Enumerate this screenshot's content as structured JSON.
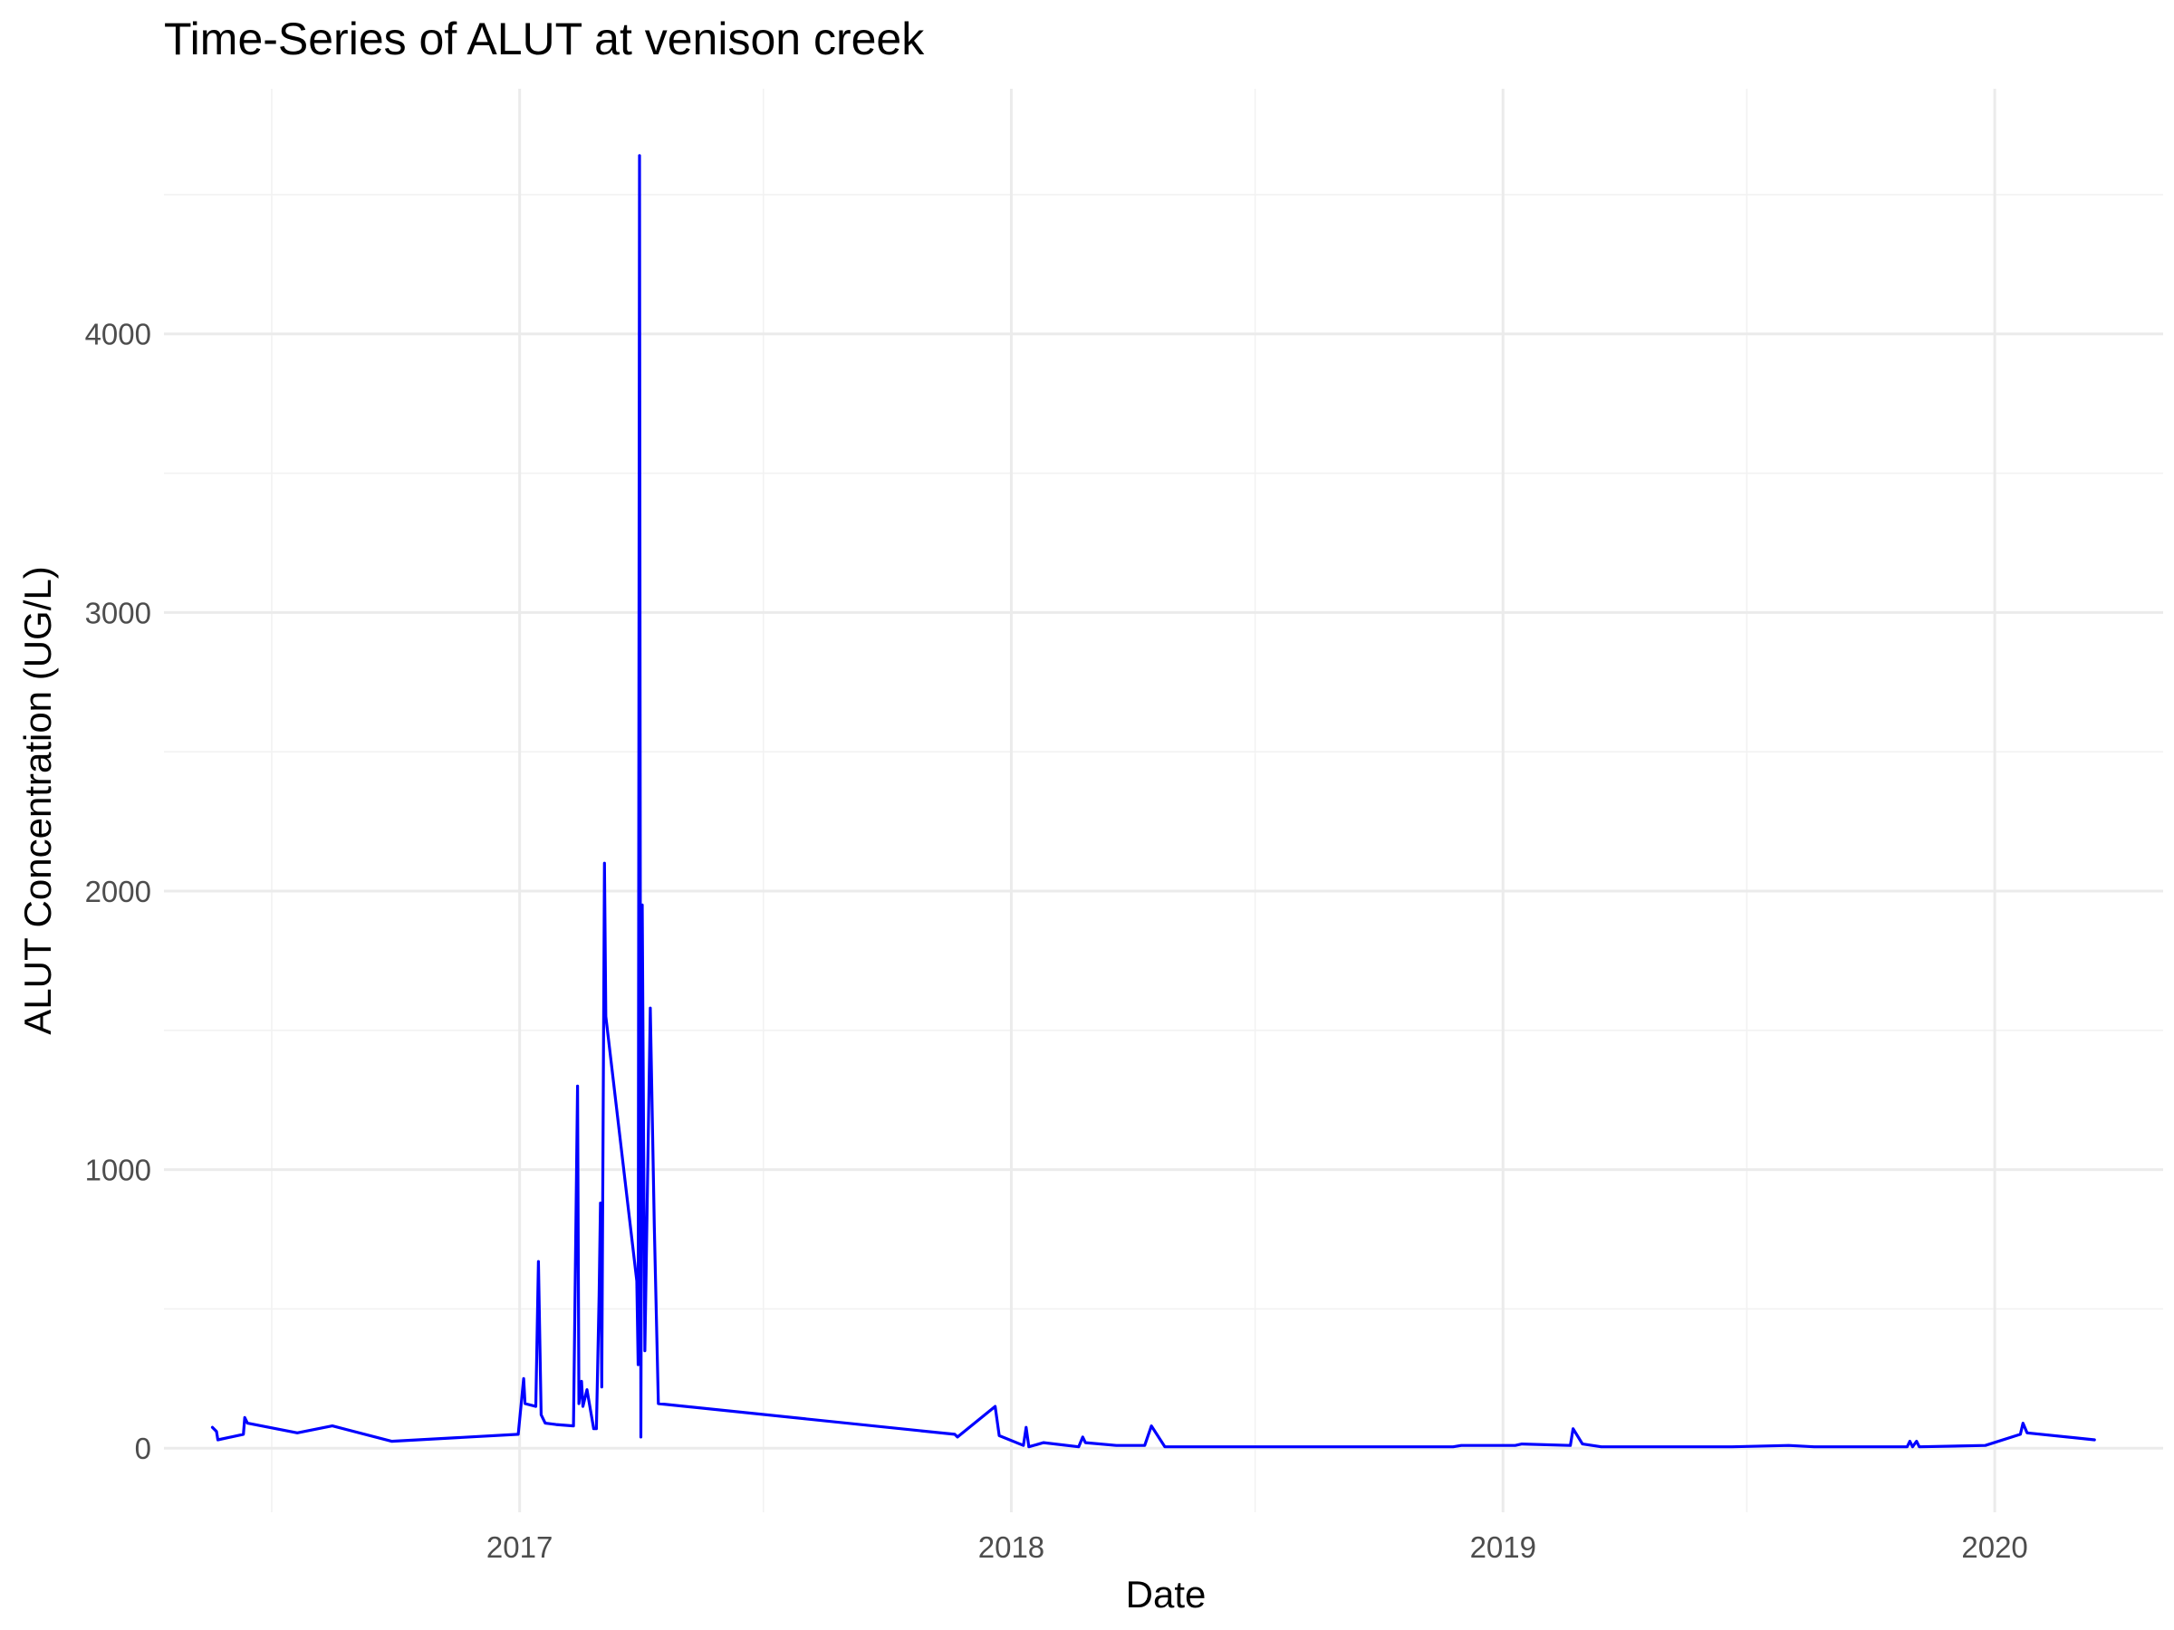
{
  "chart_data": {
    "type": "line",
    "title": "Time-Series of ALUT at venison creek",
    "xlabel": "Date",
    "ylabel": "ALUT Concentration (UG/L)",
    "x_ticks": [
      "2017",
      "2018",
      "2019",
      "2020"
    ],
    "y_ticks": [
      "0",
      "1000",
      "2000",
      "3000",
      "4000"
    ],
    "xlim": [
      "2016-04-12",
      "2020-05-05"
    ],
    "ylim": [
      -230,
      4880
    ],
    "grid": true,
    "legend": "none",
    "series": [
      {
        "color": "#0000ff",
        "points": [
          [
            "2016-05-18",
            75
          ],
          [
            "2016-05-21",
            60
          ],
          [
            "2016-05-22",
            30
          ],
          [
            "2016-06-10",
            50
          ],
          [
            "2016-06-11",
            110
          ],
          [
            "2016-06-13",
            90
          ],
          [
            "2016-07-20",
            55
          ],
          [
            "2016-08-15",
            80
          ],
          [
            "2016-09-28",
            25
          ],
          [
            "2016-11-05",
            35
          ],
          [
            "2016-12-31",
            50
          ],
          [
            "2017-01-04",
            250
          ],
          [
            "2017-01-05",
            160
          ],
          [
            "2017-01-13",
            150
          ],
          [
            "2017-01-15",
            670
          ],
          [
            "2017-01-17",
            120
          ],
          [
            "2017-01-20",
            90
          ],
          [
            "2017-01-28",
            85
          ],
          [
            "2017-02-10",
            80
          ],
          [
            "2017-02-13",
            1300
          ],
          [
            "2017-02-14",
            160
          ],
          [
            "2017-02-16",
            240
          ],
          [
            "2017-02-17",
            150
          ],
          [
            "2017-02-20",
            210
          ],
          [
            "2017-02-25",
            70
          ],
          [
            "2017-02-27",
            70
          ],
          [
            "2017-03-01",
            550
          ],
          [
            "2017-03-02",
            880
          ],
          [
            "2017-03-03",
            220
          ],
          [
            "2017-03-05",
            2100
          ],
          [
            "2017-03-06",
            1550
          ],
          [
            "2017-03-29",
            600
          ],
          [
            "2017-03-30",
            300
          ],
          [
            "2017-03-31",
            4640
          ],
          [
            "2017-04-01",
            40
          ],
          [
            "2017-04-02",
            1950
          ],
          [
            "2017-04-04",
            350
          ],
          [
            "2017-04-08",
            1580
          ],
          [
            "2017-04-11",
            800
          ],
          [
            "2017-04-14",
            160
          ],
          [
            "2017-11-20",
            50
          ],
          [
            "2017-11-22",
            40
          ],
          [
            "2017-12-20",
            150
          ],
          [
            "2017-12-23",
            45
          ],
          [
            "2018-01-10",
            10
          ],
          [
            "2018-01-12",
            75
          ],
          [
            "2018-01-14",
            5
          ],
          [
            "2018-01-25",
            20
          ],
          [
            "2018-02-20",
            5
          ],
          [
            "2018-02-23",
            40
          ],
          [
            "2018-02-25",
            20
          ],
          [
            "2018-03-20",
            10
          ],
          [
            "2018-04-10",
            10
          ],
          [
            "2018-04-15",
            80
          ],
          [
            "2018-04-25",
            5
          ],
          [
            "2018-11-25",
            5
          ],
          [
            "2018-12-01",
            10
          ],
          [
            "2019-01-10",
            10
          ],
          [
            "2019-01-15",
            15
          ],
          [
            "2019-02-20",
            10
          ],
          [
            "2019-02-22",
            70
          ],
          [
            "2019-03-01",
            15
          ],
          [
            "2019-03-15",
            5
          ],
          [
            "2019-04-20",
            5
          ],
          [
            "2019-06-20",
            5
          ],
          [
            "2019-08-01",
            10
          ],
          [
            "2019-08-20",
            5
          ],
          [
            "2019-10-28",
            5
          ],
          [
            "2019-10-30",
            25
          ],
          [
            "2019-11-01",
            5
          ],
          [
            "2019-11-04",
            25
          ],
          [
            "2019-11-06",
            5
          ],
          [
            "2019-12-25",
            10
          ],
          [
            "2020-01-20",
            50
          ],
          [
            "2020-01-22",
            90
          ],
          [
            "2020-01-25",
            55
          ],
          [
            "2020-03-15",
            30
          ]
        ]
      }
    ]
  }
}
